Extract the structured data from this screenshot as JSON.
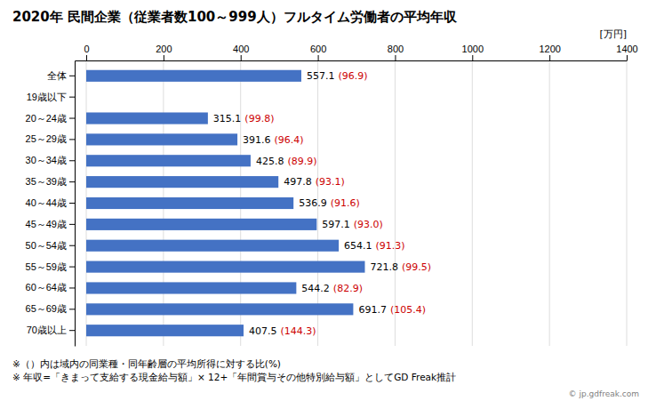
{
  "chart_data": {
    "type": "bar",
    "orientation": "horizontal",
    "title": "2020年 民間企業（従業者数100～999人）フルタイム労働者の平均年収",
    "categories": [
      "全体",
      "19歳以下",
      "20～24歳",
      "25～29歳",
      "30～34歳",
      "35～39歳",
      "40～44歳",
      "45～49歳",
      "50～54歳",
      "55～59歳",
      "60～64歳",
      "65～69歳",
      "70歳以上"
    ],
    "values": [
      557.1,
      0,
      315.1,
      391.6,
      425.8,
      497.8,
      536.9,
      597.1,
      654.1,
      721.8,
      544.2,
      691.7,
      407.5
    ],
    "value_labels": [
      "557.1",
      null,
      "315.1",
      "391.6",
      "425.8",
      "497.8",
      "536.9",
      "597.1",
      "654.1",
      "721.8",
      "544.2",
      "691.7",
      "407.5"
    ],
    "ratios": {
      "labels": [
        "(96.9)",
        null,
        "(99.8)",
        "(96.4)",
        "(89.9)",
        "(93.1)",
        "(91.6)",
        "(93.0)",
        "(91.3)",
        "(99.5)",
        "(82.9)",
        "(105.4)",
        "(144.3)"
      ],
      "color": "#cc0000"
    },
    "color": "#4472C4",
    "xlabel": "[万円]",
    "xlim": [
      -30,
      1400
    ],
    "xticks": [
      0,
      200,
      400,
      600,
      800,
      1000,
      1200,
      1400
    ],
    "grid": true,
    "footnotes": [
      "※（）内は域内の同業種・同年齢層の平均所得に対する比(%)",
      "※ 年収=「きまって支給する現金給与額」× 12+「年間賞与その他特別給与額」としてGD Freak推計"
    ],
    "source": "© jp.gdfreak.com"
  }
}
